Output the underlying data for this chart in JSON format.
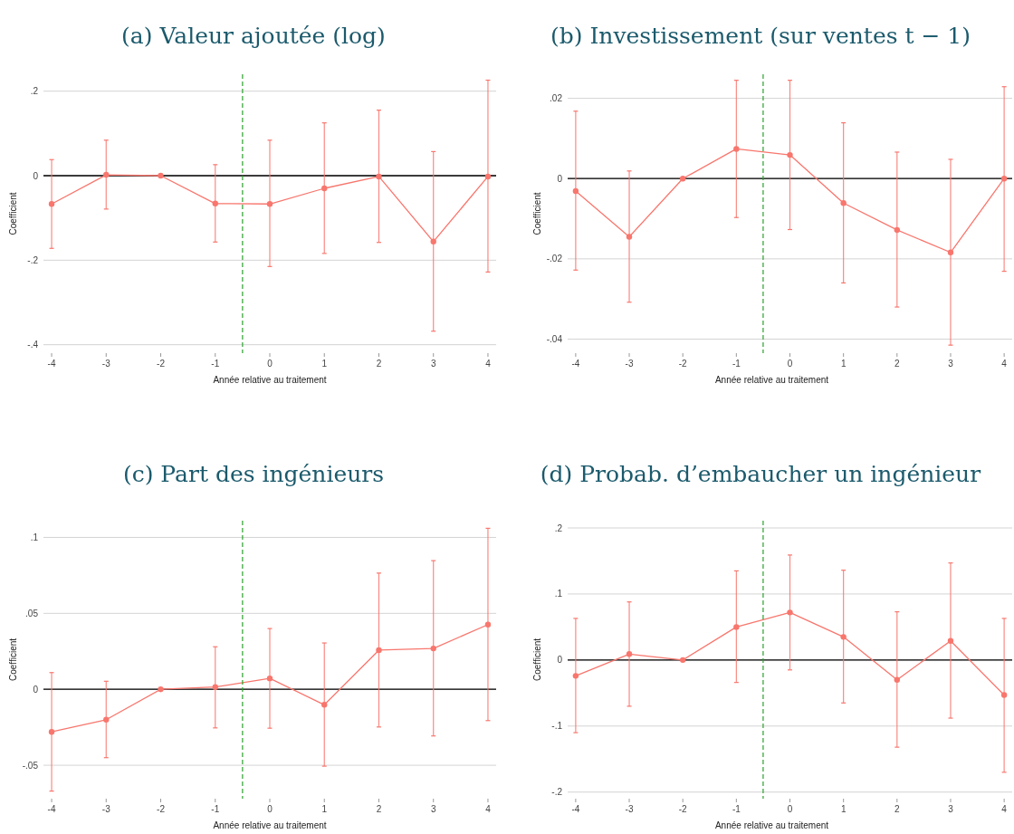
{
  "chart_data": [
    {
      "type": "line",
      "title": "(a) Valeur ajoutée (log)",
      "xlabel": "Année relative au traitement",
      "ylabel": "Coefficient",
      "x": [
        -4,
        -3,
        -2,
        -1,
        0,
        1,
        2,
        3,
        4
      ],
      "xlim": [
        -4.15,
        4.15
      ],
      "xticks": [
        -4,
        -3,
        -2,
        -1,
        0,
        1,
        2,
        3,
        4
      ],
      "ylim": [
        -0.42,
        0.24
      ],
      "yticks": [
        {
          "value": 0.2,
          "label": ".2"
        },
        {
          "value": 0,
          "label": "0"
        },
        {
          "value": -0.2,
          "label": "-.2"
        },
        {
          "value": -0.4,
          "label": "-.4"
        }
      ],
      "grid": "y",
      "marker": "circle",
      "series": [
        {
          "color": "#f8766d",
          "values": [
            -0.067,
            0.002,
            0,
            -0.066,
            -0.067,
            -0.03,
            -0.002,
            -0.156,
            -0.002
          ],
          "errors": [
            [
              -0.172,
              0.038
            ],
            [
              -0.079,
              0.084
            ],
            null,
            [
              -0.157,
              0.026
            ],
            [
              -0.215,
              0.084
            ],
            [
              -0.184,
              0.125
            ],
            [
              -0.158,
              0.155
            ],
            [
              -0.368,
              0.057
            ],
            [
              -0.228,
              0.226
            ]
          ]
        }
      ],
      "ref_lines": [
        {
          "axis": "y",
          "value": 0,
          "color": "#000000",
          "line_style": "solid"
        },
        {
          "axis": "x",
          "value": -0.5,
          "color": "#2ca02c",
          "line_style": "dashed"
        }
      ]
    },
    {
      "type": "line",
      "title": "(b) Investissement (sur ventes t − 1)",
      "xlabel": "Année relative au traitement",
      "ylabel": "Coefficient",
      "x": [
        -4,
        -3,
        -2,
        -1,
        0,
        1,
        2,
        3,
        4
      ],
      "xlim": [
        -4.15,
        4.15
      ],
      "xticks": [
        -4,
        -3,
        -2,
        -1,
        0,
        1,
        2,
        3,
        4
      ],
      "ylim": [
        -0.0435,
        0.026
      ],
      "yticks": [
        {
          "value": 0.02,
          "label": ".02"
        },
        {
          "value": 0,
          "label": "0"
        },
        {
          "value": -0.02,
          "label": "-.02"
        },
        {
          "value": -0.04,
          "label": "-.04"
        }
      ],
      "grid": "y",
      "marker": "circle",
      "series": [
        {
          "color": "#f8766d",
          "values": [
            -0.0031,
            -0.0145,
            0,
            0.0074,
            0.0059,
            -0.0061,
            -0.0128,
            -0.0184,
            0
          ],
          "errors": [
            [
              -0.0228,
              0.0168
            ],
            [
              -0.0308,
              0.0019
            ],
            null,
            [
              -0.0097,
              0.0245
            ],
            [
              -0.0127,
              0.0245
            ],
            [
              -0.026,
              0.0139
            ],
            [
              -0.032,
              0.0066
            ],
            [
              -0.0415,
              0.0048
            ],
            [
              -0.0231,
              0.0229
            ]
          ]
        }
      ],
      "ref_lines": [
        {
          "axis": "y",
          "value": 0,
          "color": "#000000",
          "line_style": "solid"
        },
        {
          "axis": "x",
          "value": -0.5,
          "color": "#2ca02c",
          "line_style": "dashed"
        }
      ]
    },
    {
      "type": "line",
      "title": "(c) Part des ingénieurs",
      "xlabel": "Année relative au traitement",
      "ylabel": "Coefficient",
      "x": [
        -4,
        -3,
        -2,
        -1,
        0,
        1,
        2,
        3,
        4
      ],
      "xlim": [
        -4.15,
        4.15
      ],
      "xticks": [
        -4,
        -3,
        -2,
        -1,
        0,
        1,
        2,
        3,
        4
      ],
      "ylim": [
        -0.072,
        0.111
      ],
      "yticks": [
        {
          "value": 0.1,
          "label": ".1"
        },
        {
          "value": 0.05,
          "label": ".05"
        },
        {
          "value": 0,
          "label": "0"
        },
        {
          "value": -0.05,
          "label": "-.05"
        }
      ],
      "grid": "y",
      "marker": "circle",
      "series": [
        {
          "color": "#f8766d",
          "values": [
            -0.028,
            -0.02,
            0,
            0.0015,
            0.0072,
            -0.0102,
            0.0258,
            0.0269,
            0.0426
          ],
          "errors": [
            [
              -0.067,
              0.011
            ],
            [
              -0.045,
              0.0053
            ],
            null,
            [
              -0.0254,
              0.028
            ],
            [
              -0.0256,
              0.04
            ],
            [
              -0.0506,
              0.0305
            ],
            [
              -0.0248,
              0.0765
            ],
            [
              -0.0307,
              0.0847
            ],
            [
              -0.0206,
              0.106
            ]
          ]
        }
      ],
      "ref_lines": [
        {
          "axis": "y",
          "value": 0,
          "color": "#000000",
          "line_style": "solid"
        },
        {
          "axis": "x",
          "value": -0.5,
          "color": "#2ca02c",
          "line_style": "dashed"
        }
      ]
    },
    {
      "type": "line",
      "title": "(d) Probab. d’embaucher un ingénieur",
      "xlabel": "Année relative au traitement",
      "ylabel": "Coefficient",
      "x": [
        -4,
        -3,
        -2,
        -1,
        0,
        1,
        2,
        3,
        4
      ],
      "xlim": [
        -4.15,
        4.15
      ],
      "xticks": [
        -4,
        -3,
        -2,
        -1,
        0,
        1,
        2,
        3,
        4
      ],
      "ylim": [
        -0.21,
        0.211
      ],
      "yticks": [
        {
          "value": 0.2,
          "label": ".2"
        },
        {
          "value": 0.1,
          "label": ".1"
        },
        {
          "value": 0,
          "label": "0"
        },
        {
          "value": -0.1,
          "label": "-.1"
        },
        {
          "value": -0.2,
          "label": "-.2"
        }
      ],
      "grid": "y",
      "marker": "circle",
      "series": [
        {
          "color": "#f8766d",
          "values": [
            -0.024,
            0.009,
            0,
            0.05,
            0.072,
            0.035,
            -0.03,
            0.029,
            -0.053
          ],
          "errors": [
            [
              -0.11,
              0.063
            ],
            [
              -0.07,
              0.088
            ],
            null,
            [
              -0.034,
              0.135
            ],
            [
              -0.015,
              0.159
            ],
            [
              -0.065,
              0.136
            ],
            [
              -0.132,
              0.073
            ],
            [
              -0.088,
              0.147
            ],
            [
              -0.17,
              0.063
            ]
          ]
        }
      ],
      "ref_lines": [
        {
          "axis": "y",
          "value": 0,
          "color": "#000000",
          "line_style": "solid"
        },
        {
          "axis": "x",
          "value": -0.5,
          "color": "#2ca02c",
          "line_style": "dashed"
        }
      ]
    }
  ]
}
